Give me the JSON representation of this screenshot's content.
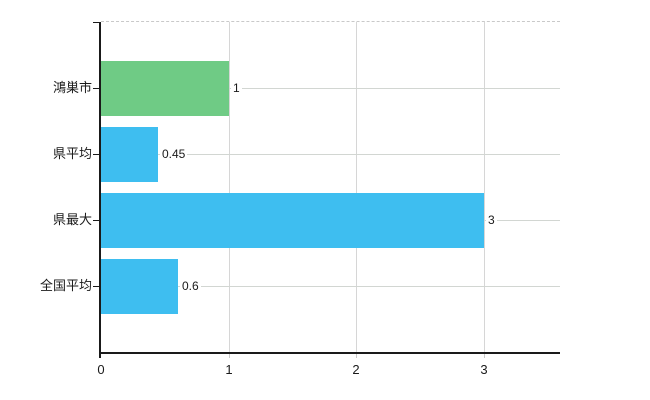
{
  "chart_data": {
    "type": "bar",
    "orientation": "horizontal",
    "title": "",
    "categories": [
      "鴻巣市",
      "県平均",
      "県最大",
      "全国平均"
    ],
    "values": [
      1,
      0.45,
      3,
      0.6
    ],
    "value_labels": [
      "1",
      "0.45",
      "3",
      "0.6"
    ],
    "bar_colors": [
      "#6fcb85",
      "#3ebef0",
      "#3ebef0",
      "#3ebef0"
    ],
    "xlim": [
      0,
      3.6
    ],
    "x_ticks": [
      0,
      1,
      2,
      3
    ],
    "x_tick_labels": [
      "0",
      "1",
      "2",
      "3"
    ],
    "grid": true,
    "grid_vertical": true,
    "grid_horizontal": true,
    "legend": "none"
  },
  "colors": {
    "background": "#ffffff",
    "axis": "#1a1a1a",
    "grid": "#d6d6d6",
    "top_border_dashed": "#c9c9c9",
    "text": "#1a1a1a",
    "green_bar": "#6fcb85",
    "blue_bar": "#3ebef0"
  }
}
